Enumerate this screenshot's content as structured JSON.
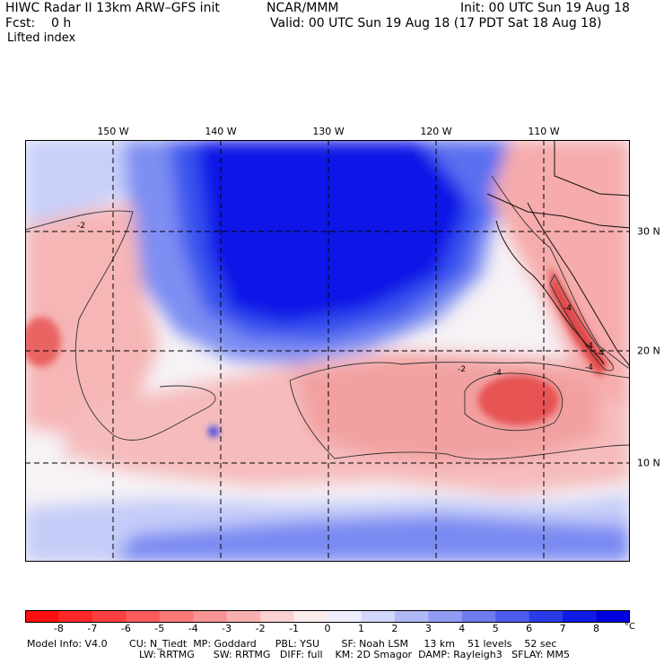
{
  "header": {
    "title": "HIWC Radar II 13km ARW–GFS init",
    "org": "NCAR/MMM",
    "init": "Init: 00 UTC Sun 19 Aug 18",
    "fcst": "Fcst:    0 h",
    "valid": "Valid: 00 UTC Sun 19 Aug 18 (17 PDT Sat 18 Aug 18)",
    "field": "Lifted index"
  },
  "map": {
    "lon_labels": [
      "150 W",
      "140 W",
      "130 W",
      "120 W",
      "110 W"
    ],
    "lat_labels": [
      "30 N",
      "20 N",
      "10 N"
    ],
    "contour_labels": [
      "-2",
      "-2",
      "-4",
      "-4",
      "-4",
      "-4",
      "-4"
    ],
    "colors": {
      "deep_blue": "#0a14e6",
      "mid_blue": "#4a62f0",
      "light_blue": "#c8d0fa",
      "near_white": "#f6f2f6",
      "light_red": "#f8c2c2",
      "mid_red": "#f08a8a",
      "deep_red": "#e84a4a"
    }
  },
  "colorbar": {
    "ticks": [
      "-8",
      "-7",
      "-6",
      "-5",
      "-4",
      "-3",
      "-2",
      "-1",
      "0",
      "1",
      "2",
      "3",
      "4",
      "5",
      "6",
      "7",
      "8"
    ],
    "unit": "°C",
    "colors": [
      "#ff1010",
      "#ff2828",
      "#ff4040",
      "#fc5c5c",
      "#f87878",
      "#f69494",
      "#f8b0b0",
      "#fad0d0",
      "#fcecec",
      "#eeeefc",
      "#d2d6fa",
      "#b0b8f6",
      "#909cf4",
      "#6e7cf0",
      "#4c5cec",
      "#2a3ce8",
      "#101ce6",
      "#0000e0"
    ]
  },
  "model_info": {
    "line1": "Model Info: V4.0       CU: N_Tiedt  MP: Goddard      PBL: YSU       SF: Noah LSM     13 km    51 levels    52 sec",
    "line2": "LW: RRTMG      SW: RRTMG   DIFF: full    KM: 2D Smagor  DAMP: Rayleigh3   SFLAY: MM5"
  }
}
